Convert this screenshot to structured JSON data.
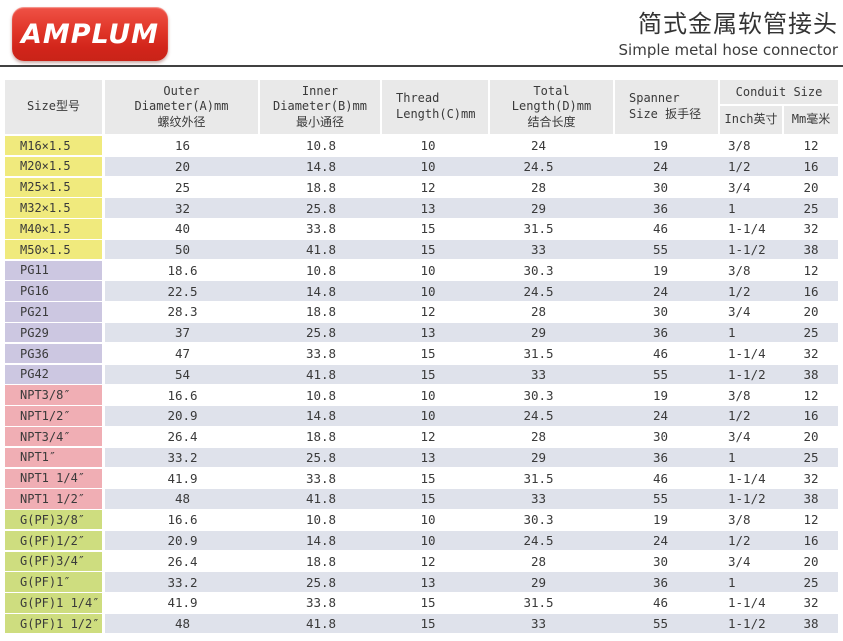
{
  "brand": {
    "logo_text": "AMPLUM"
  },
  "header": {
    "title_zh": "简式金属软管接头",
    "title_en": "Simple metal hose connector"
  },
  "colors": {
    "logo_red": "#d8281d",
    "header_bg": "#e9e9e9",
    "row_stripe": "#dfe2eb",
    "group_metric": "#f0ea7d",
    "group_pg": "#ccc7e1",
    "group_npt": "#f0aeb4",
    "group_gpf": "#cedd7f"
  },
  "table": {
    "header": {
      "size": "Size型号",
      "outer": "Outer\nDiameter(A)mm\n螺纹外径",
      "inner": "Inner\nDiameter(B)mm\n最小通径",
      "thread": "Thread\nLength(C)mm",
      "total": "Total\nLength(D)mm\n结合长度",
      "spanner": "Spanner\nSize 扳手径",
      "conduit": "Conduit Size",
      "conduit_inch": "Inch英寸",
      "conduit_mm": "Mm毫米"
    },
    "groups": [
      {
        "name": "metric-thread",
        "color": "#f0ea7d",
        "rows": [
          {
            "size": "M16×1.5",
            "values": [
              "16",
              "10.8",
              "10",
              "24",
              "19",
              "3/8",
              "12"
            ]
          },
          {
            "size": "M20×1.5",
            "values": [
              "20",
              "14.8",
              "10",
              "24.5",
              "24",
              "1/2",
              "16"
            ]
          },
          {
            "size": "M25×1.5",
            "values": [
              "25",
              "18.8",
              "12",
              "28",
              "30",
              "3/4",
              "20"
            ]
          },
          {
            "size": "M32×1.5",
            "values": [
              "32",
              "25.8",
              "13",
              "29",
              "36",
              "1",
              "25"
            ]
          },
          {
            "size": "M40×1.5",
            "values": [
              "40",
              "33.8",
              "15",
              "31.5",
              "46",
              "1-1/4",
              "32"
            ]
          },
          {
            "size": "M50×1.5",
            "values": [
              "50",
              "41.8",
              "15",
              "33",
              "55",
              "1-1/2",
              "38"
            ]
          }
        ]
      },
      {
        "name": "pg-thread",
        "color": "#ccc7e1",
        "rows": [
          {
            "size": "PG11",
            "values": [
              "18.6",
              "10.8",
              "10",
              "30.3",
              "19",
              "3/8",
              "12"
            ]
          },
          {
            "size": "PG16",
            "values": [
              "22.5",
              "14.8",
              "10",
              "24.5",
              "24",
              "1/2",
              "16"
            ]
          },
          {
            "size": "PG21",
            "values": [
              "28.3",
              "18.8",
              "12",
              "28",
              "30",
              "3/4",
              "20"
            ]
          },
          {
            "size": "PG29",
            "values": [
              "37",
              "25.8",
              "13",
              "29",
              "36",
              "1",
              "25"
            ]
          },
          {
            "size": "PG36",
            "values": [
              "47",
              "33.8",
              "15",
              "31.5",
              "46",
              "1-1/4",
              "32"
            ]
          },
          {
            "size": "PG42",
            "values": [
              "54",
              "41.8",
              "15",
              "33",
              "55",
              "1-1/2",
              "38"
            ]
          }
        ]
      },
      {
        "name": "npt-thread",
        "color": "#f0aeb4",
        "rows": [
          {
            "size": "NPT3/8″",
            "values": [
              "16.6",
              "10.8",
              "10",
              "30.3",
              "19",
              "3/8",
              "12"
            ]
          },
          {
            "size": "NPT1/2″",
            "values": [
              "20.9",
              "14.8",
              "10",
              "24.5",
              "24",
              "1/2",
              "16"
            ]
          },
          {
            "size": "NPT3/4″",
            "values": [
              "26.4",
              "18.8",
              "12",
              "28",
              "30",
              "3/4",
              "20"
            ]
          },
          {
            "size": "NPT1″",
            "values": [
              "33.2",
              "25.8",
              "13",
              "29",
              "36",
              "1",
              "25"
            ]
          },
          {
            "size": "NPT1 1/4″",
            "values": [
              "41.9",
              "33.8",
              "15",
              "31.5",
              "46",
              "1-1/4",
              "32"
            ]
          },
          {
            "size": "NPT1 1/2″",
            "values": [
              "48",
              "41.8",
              "15",
              "33",
              "55",
              "1-1/2",
              "38"
            ]
          }
        ]
      },
      {
        "name": "gpf-thread",
        "color": "#cedd7f",
        "rows": [
          {
            "size": "G(PF)3/8″",
            "values": [
              "16.6",
              "10.8",
              "10",
              "30.3",
              "19",
              "3/8",
              "12"
            ]
          },
          {
            "size": "G(PF)1/2″",
            "values": [
              "20.9",
              "14.8",
              "10",
              "24.5",
              "24",
              "1/2",
              "16"
            ]
          },
          {
            "size": "G(PF)3/4″",
            "values": [
              "26.4",
              "18.8",
              "12",
              "28",
              "30",
              "3/4",
              "20"
            ]
          },
          {
            "size": "G(PF)1″",
            "values": [
              "33.2",
              "25.8",
              "13",
              "29",
              "36",
              "1",
              "25"
            ]
          },
          {
            "size": "G(PF)1 1/4″",
            "values": [
              "41.9",
              "33.8",
              "15",
              "31.5",
              "46",
              "1-1/4",
              "32"
            ]
          },
          {
            "size": "G(PF)1 1/2″",
            "values": [
              "48",
              "41.8",
              "15",
              "33",
              "55",
              "1-1/2",
              "38"
            ]
          }
        ]
      }
    ]
  }
}
